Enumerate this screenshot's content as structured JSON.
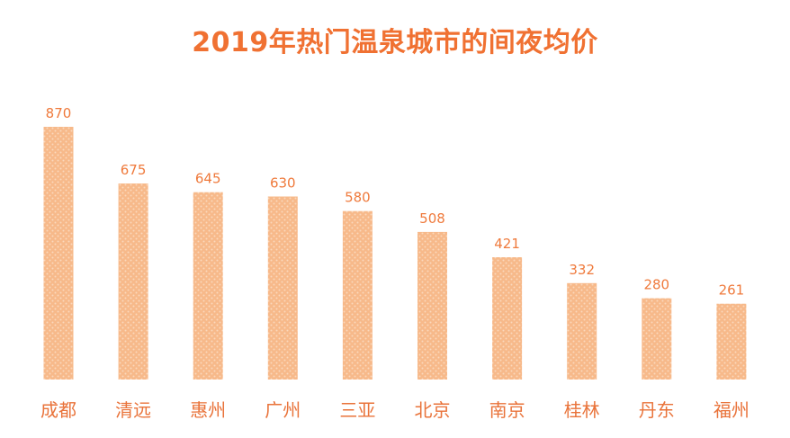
{
  "chart_data": {
    "type": "bar",
    "title": "2019年热门温泉城市的间夜均价",
    "categories": [
      "成都",
      "清远",
      "惠州",
      "广州",
      "三亚",
      "北京",
      "南京",
      "桂林",
      "丹东",
      "福州"
    ],
    "values": [
      870,
      675,
      645,
      630,
      580,
      508,
      421,
      332,
      280,
      261
    ],
    "xlabel": "",
    "ylabel": "",
    "ylim": [
      0,
      870
    ],
    "grid": false,
    "legend": "none",
    "bar_color": "#f7b98a",
    "bar_pattern_color": "#fbd8bc",
    "label_color": "#ef7a3c",
    "title_color": "#f07132"
  }
}
